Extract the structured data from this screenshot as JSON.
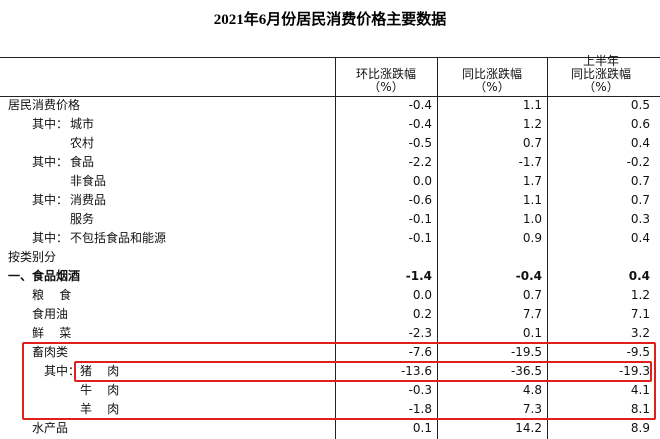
{
  "title": "2021年6月份居民消费价格主要数据",
  "table": {
    "header": [
      [
        "环比涨跌幅",
        "（%）"
      ],
      [
        "同比涨跌幅",
        "（%）"
      ],
      [
        "上半年",
        "同比涨跌幅",
        "（%）"
      ]
    ],
    "rows": [
      {
        "label": "居民消费价格",
        "values": [
          "-0.4",
          "1.1",
          "0.5"
        ]
      },
      {
        "prefix": "其中：",
        "label": "城市",
        "values": [
          "-0.4",
          "1.2",
          "0.6"
        ]
      },
      {
        "label": "农村",
        "values": [
          "-0.5",
          "0.7",
          "0.4"
        ]
      },
      {
        "prefix": "其中：",
        "label": "食品",
        "values": [
          "-2.2",
          "-1.7",
          "-0.2"
        ]
      },
      {
        "label": "非食品",
        "values": [
          "0.0",
          "1.7",
          "0.7"
        ]
      },
      {
        "prefix": "其中：",
        "label": "消费品",
        "values": [
          "-0.6",
          "1.1",
          "0.7"
        ]
      },
      {
        "label": "服务",
        "values": [
          "-0.1",
          "1.0",
          "0.3"
        ]
      },
      {
        "prefix": "其中：",
        "label": "不包括食品和能源",
        "values": [
          "-0.1",
          "0.9",
          "0.4"
        ]
      },
      {
        "label": "按类别分"
      },
      {
        "label": "一、食品烟酒",
        "values": [
          "-1.4",
          "-0.4",
          "0.4"
        ]
      },
      {
        "label": "粮    食",
        "values": [
          "0.0",
          "0.7",
          "1.2"
        ]
      },
      {
        "label": "食用油",
        "values": [
          "0.2",
          "7.7",
          "7.1"
        ]
      },
      {
        "label": "鲜    菜",
        "values": [
          "-2.3",
          "0.1",
          "3.2"
        ]
      },
      {
        "label": "畜肉类",
        "values": [
          "-7.6",
          "-19.5",
          "-9.5"
        ]
      },
      {
        "prefix": "其中：",
        "label": "猪    肉",
        "values": [
          "-13.6",
          "-36.5",
          "-19.3"
        ]
      },
      {
        "label": "牛    肉",
        "values": [
          "-0.3",
          "4.8",
          "4.1"
        ]
      },
      {
        "label": "羊    肉",
        "values": [
          "-1.8",
          "7.3",
          "8.1"
        ]
      },
      {
        "label": "水产品",
        "values": [
          "0.1",
          "14.2",
          "8.9"
        ]
      }
    ]
  }
}
